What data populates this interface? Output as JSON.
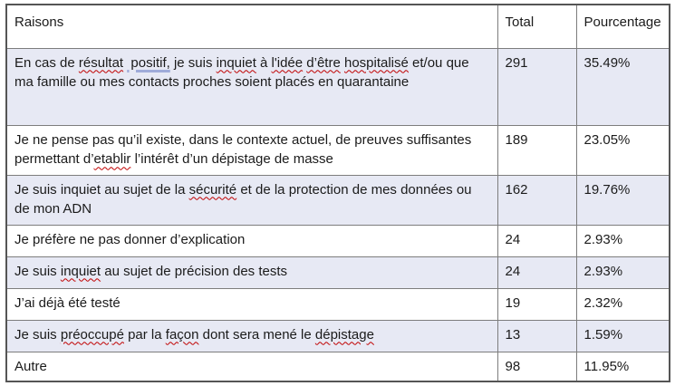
{
  "colors": {
    "shaded_row_background": "#E7E9F4",
    "spellcheck_underline_red": "#C00000",
    "grammar_underline_blue": "#9FABD9",
    "table_border": "#555555",
    "text": "#1B1B1B"
  },
  "table": {
    "columns": [
      {
        "key": "raisons",
        "label": "Raisons"
      },
      {
        "key": "total",
        "label": "Total"
      },
      {
        "key": "pourcentage",
        "label": "Pourcentage"
      }
    ],
    "rows": [
      {
        "shaded": true,
        "reason": [
          {
            "t": "En cas de "
          },
          {
            "t": "résultat",
            "m": "red"
          },
          {
            "t": " "
          },
          {
            "t": " positif,",
            "m": "blue"
          },
          {
            "t": " je suis "
          },
          {
            "t": "inquiet",
            "m": "red"
          },
          {
            "t": " à "
          },
          {
            "t": "l'idée",
            "m": "red"
          },
          {
            "t": " "
          },
          {
            "t": "d’être",
            "m": "red"
          },
          {
            "t": " "
          },
          {
            "t": "hospitalisé",
            "m": "red"
          },
          {
            "t": " et/ou que ma famille ou mes contacts proches soient placés en quarantaine"
          }
        ],
        "total": "291",
        "pourcentage": "35.49%"
      },
      {
        "shaded": false,
        "reason": [
          {
            "t": "Je ne pense pas qu’il existe, dans le contexte actuel, de preuves suffisantes permettant d’"
          },
          {
            "t": "etablir",
            "m": "red"
          },
          {
            "t": " l’intérêt d’un dépistage de masse"
          }
        ],
        "total": "189",
        "pourcentage": "23.05%"
      },
      {
        "shaded": true,
        "reason": [
          {
            "t": "Je suis inquiet au sujet de la "
          },
          {
            "t": "sécurité",
            "m": "red"
          },
          {
            "t": " et de la protection de mes données ou de mon ADN"
          }
        ],
        "total": "162",
        "pourcentage": "19.76%"
      },
      {
        "shaded": false,
        "reason": [
          {
            "t": "Je préfère ne pas donner d’explication"
          }
        ],
        "total": "24",
        "pourcentage": "2.93%"
      },
      {
        "shaded": true,
        "reason": [
          {
            "t": "Je suis "
          },
          {
            "t": "inquiet",
            "m": "red"
          },
          {
            "t": " au sujet de précision des tests"
          }
        ],
        "total": "24",
        "pourcentage": "2.93%"
      },
      {
        "shaded": false,
        "reason": [
          {
            "t": "J’ai déjà été testé"
          }
        ],
        "total": "19",
        "pourcentage": "2.32%"
      },
      {
        "shaded": true,
        "reason": [
          {
            "t": "Je suis "
          },
          {
            "t": "préoccupé",
            "m": "red"
          },
          {
            "t": " par la "
          },
          {
            "t": "façon",
            "m": "red"
          },
          {
            "t": " dont sera mené le "
          },
          {
            "t": "dépistage",
            "m": "red"
          }
        ],
        "total": "13",
        "pourcentage": "1.59%"
      },
      {
        "shaded": false,
        "reason": [
          {
            "t": "Autre"
          }
        ],
        "total": "98",
        "pourcentage": "11.95%"
      }
    ]
  }
}
